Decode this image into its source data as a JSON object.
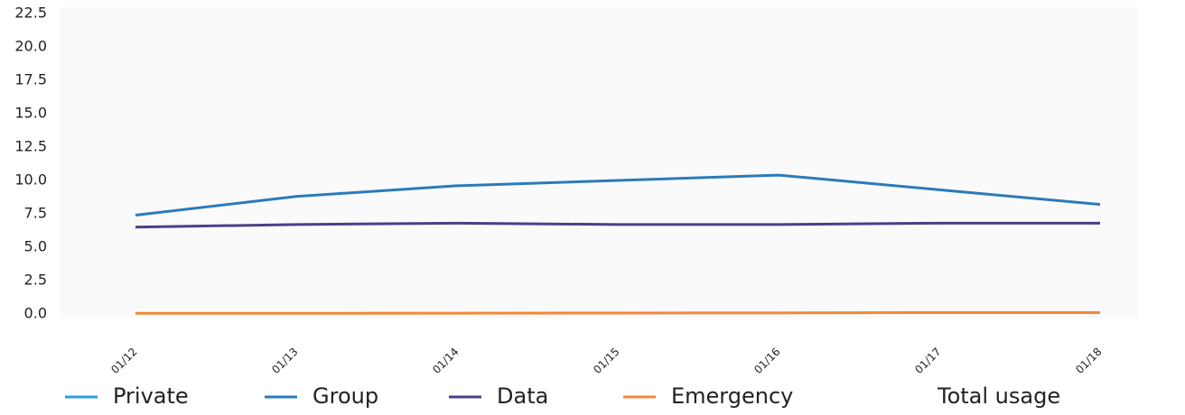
{
  "chart_data": {
    "type": "line",
    "categories": [
      "01/12",
      "01/13",
      "01/14",
      "01/15",
      "01/16",
      "01/17",
      "01/18"
    ],
    "series": [
      {
        "name": "Private",
        "color": "#2a9fd6",
        "values": [
          null,
          null,
          null,
          null,
          null,
          null,
          null
        ]
      },
      {
        "name": "Group",
        "color": "#2b7bba",
        "values": [
          7.4,
          8.8,
          9.6,
          10.0,
          10.4,
          9.3,
          8.2
        ]
      },
      {
        "name": "Data",
        "color": "#4b3f8a",
        "values": [
          6.5,
          6.7,
          6.8,
          6.7,
          6.7,
          6.8,
          6.8
        ]
      },
      {
        "name": "Emergency",
        "color": "#f0883a",
        "values": [
          0.05,
          0.05,
          0.06,
          0.07,
          0.08,
          0.1,
          0.1
        ]
      },
      {
        "name": "Total usage",
        "color": "#ffffff",
        "values": [
          null,
          null,
          null,
          null,
          null,
          null,
          null
        ]
      }
    ],
    "ylim": [
      0,
      22.5
    ],
    "yticks": [
      {
        "value": 0,
        "label": "0.0"
      },
      2.5,
      {
        "value": 5,
        "label": "5.0"
      },
      7.5,
      {
        "value": 10,
        "label": "10.0"
      },
      12.5,
      {
        "value": 15,
        "label": "15.0"
      },
      17.5,
      {
        "value": 20,
        "label": "20.0"
      },
      22.5
    ],
    "grid": false
  }
}
